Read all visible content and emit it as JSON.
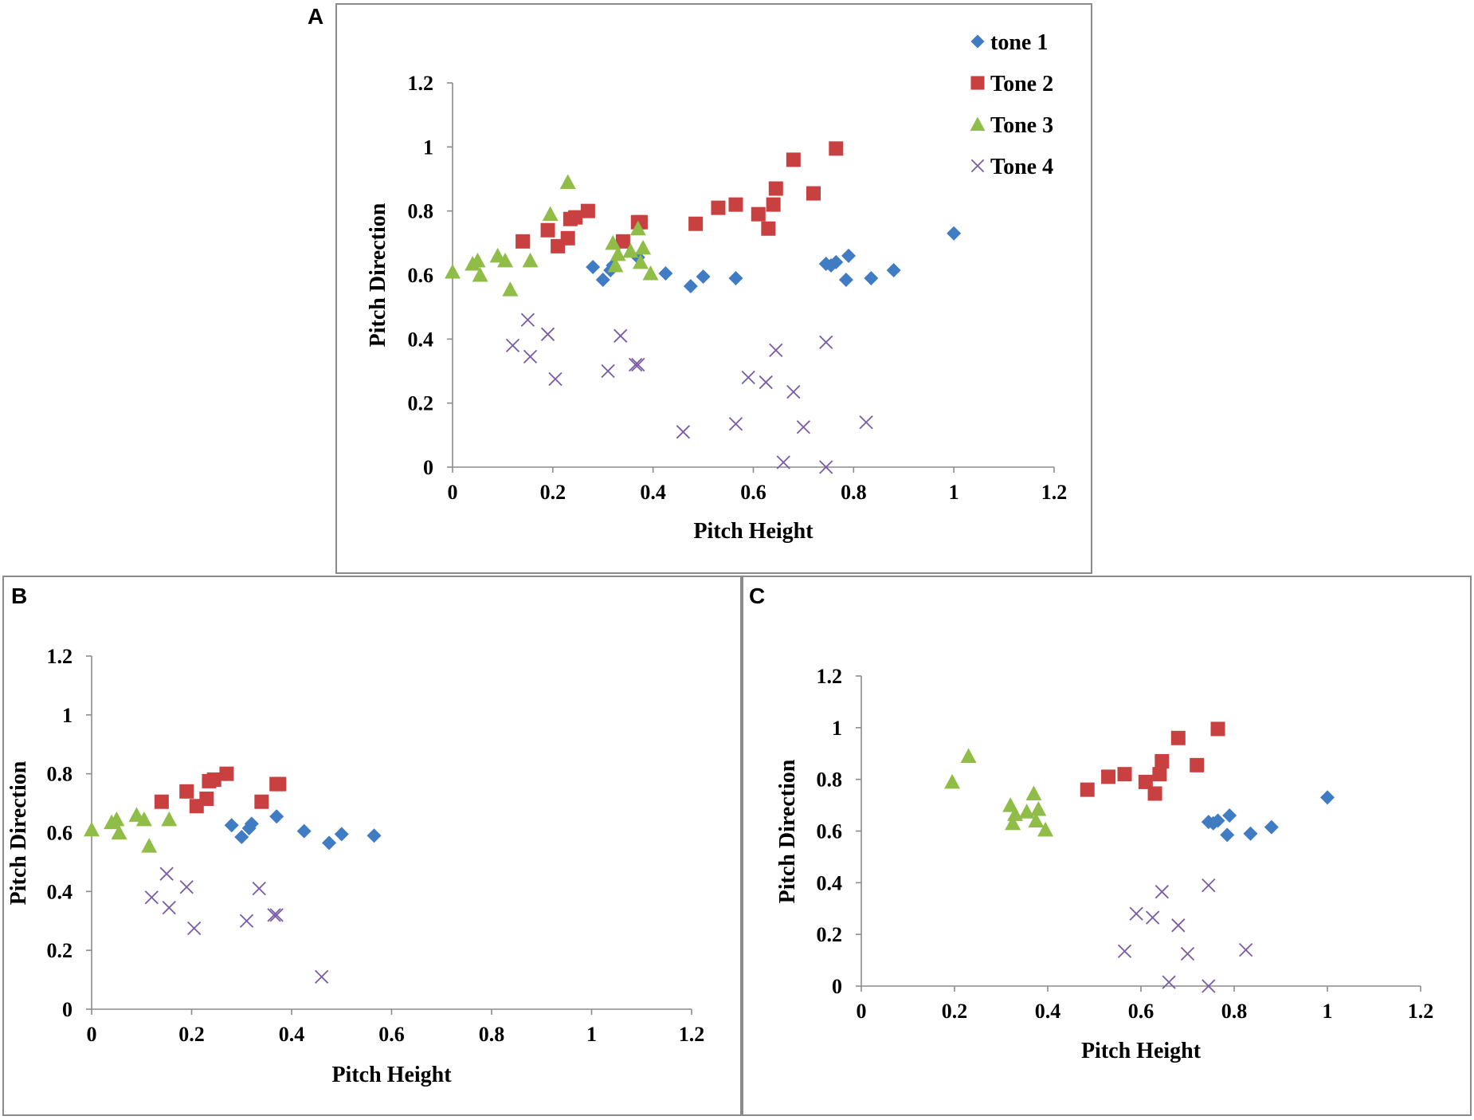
{
  "colors": {
    "tone1": "#3F7CC4",
    "tone2": "#C94040",
    "tone3": "#8FBD48",
    "tone4": "#7A5BA6",
    "axis": "#8c8c8c",
    "border": "#8a8a8a"
  },
  "legend": [
    {
      "label": "tone 1",
      "marker": "diamond",
      "color_key": "tone1"
    },
    {
      "label": "Tone 2",
      "marker": "square",
      "color_key": "tone2"
    },
    {
      "label": "Tone 3",
      "marker": "triangle",
      "color_key": "tone3"
    },
    {
      "label": "Tone 4",
      "marker": "cross",
      "color_key": "tone4"
    }
  ],
  "chart_data": [
    {
      "panel": "A",
      "type": "scatter",
      "xlabel": "Pitch Height",
      "ylabel": "Pitch Direction",
      "xlim": [
        0,
        1.2
      ],
      "ylim": [
        0,
        1.2
      ],
      "xticks": [
        "0",
        "0.2",
        "0.4",
        "0.6",
        "0.8",
        "1",
        "1.2"
      ],
      "yticks": [
        "0",
        "0.2",
        "0.4",
        "0.6",
        "0.8",
        "1",
        "1.2"
      ],
      "legend_position": "top-right",
      "series": [
        {
          "name": "tone 1",
          "marker": "diamond",
          "color_key": "tone1",
          "points": [
            [
              0.28,
              0.625
            ],
            [
              0.3,
              0.585
            ],
            [
              0.315,
              0.615
            ],
            [
              0.32,
              0.63
            ],
            [
              0.37,
              0.655
            ],
            [
              0.425,
              0.605
            ],
            [
              0.475,
              0.565
            ],
            [
              0.5,
              0.595
            ],
            [
              0.565,
              0.59
            ],
            [
              0.745,
              0.635
            ],
            [
              0.755,
              0.63
            ],
            [
              0.765,
              0.64
            ],
            [
              0.785,
              0.585
            ],
            [
              0.79,
              0.66
            ],
            [
              0.835,
              0.59
            ],
            [
              0.88,
              0.615
            ],
            [
              1.0,
              0.73
            ]
          ]
        },
        {
          "name": "Tone 2",
          "marker": "square",
          "color_key": "tone2",
          "points": [
            [
              0.14,
              0.705
            ],
            [
              0.19,
              0.74
            ],
            [
              0.21,
              0.69
            ],
            [
              0.23,
              0.715
            ],
            [
              0.235,
              0.775
            ],
            [
              0.245,
              0.78
            ],
            [
              0.27,
              0.8
            ],
            [
              0.34,
              0.705
            ],
            [
              0.37,
              0.765
            ],
            [
              0.375,
              0.765
            ],
            [
              0.485,
              0.76
            ],
            [
              0.53,
              0.81
            ],
            [
              0.565,
              0.82
            ],
            [
              0.61,
              0.79
            ],
            [
              0.63,
              0.745
            ],
            [
              0.64,
              0.82
            ],
            [
              0.645,
              0.87
            ],
            [
              0.68,
              0.96
            ],
            [
              0.72,
              0.855
            ],
            [
              0.765,
              0.995
            ]
          ]
        },
        {
          "name": "Tone 3",
          "marker": "triangle",
          "color_key": "tone3",
          "points": [
            [
              0.0,
              0.61
            ],
            [
              0.04,
              0.635
            ],
            [
              0.05,
              0.645
            ],
            [
              0.055,
              0.6
            ],
            [
              0.09,
              0.66
            ],
            [
              0.105,
              0.645
            ],
            [
              0.115,
              0.555
            ],
            [
              0.155,
              0.645
            ],
            [
              0.195,
              0.79
            ],
            [
              0.23,
              0.89
            ],
            [
              0.32,
              0.7
            ],
            [
              0.325,
              0.63
            ],
            [
              0.33,
              0.665
            ],
            [
              0.355,
              0.675
            ],
            [
              0.37,
              0.745
            ],
            [
              0.375,
              0.64
            ],
            [
              0.38,
              0.685
            ],
            [
              0.395,
              0.605
            ]
          ]
        },
        {
          "name": "Tone 4",
          "marker": "cross",
          "color_key": "tone4",
          "points": [
            [
              0.12,
              0.38
            ],
            [
              0.15,
              0.46
            ],
            [
              0.155,
              0.345
            ],
            [
              0.19,
              0.415
            ],
            [
              0.205,
              0.275
            ],
            [
              0.31,
              0.3
            ],
            [
              0.335,
              0.41
            ],
            [
              0.365,
              0.32
            ],
            [
              0.37,
              0.32
            ],
            [
              0.46,
              0.11
            ],
            [
              0.565,
              0.135
            ],
            [
              0.59,
              0.28
            ],
            [
              0.625,
              0.265
            ],
            [
              0.645,
              0.365
            ],
            [
              0.66,
              0.015
            ],
            [
              0.68,
              0.235
            ],
            [
              0.7,
              0.125
            ],
            [
              0.745,
              0.0
            ],
            [
              0.745,
              0.39
            ],
            [
              0.825,
              0.14
            ]
          ]
        }
      ]
    },
    {
      "panel": "B",
      "type": "scatter",
      "xlabel": "Pitch Height",
      "ylabel": "Pitch Direction",
      "xlim": [
        0,
        1.2
      ],
      "ylim": [
        0,
        1.2
      ],
      "xticks": [
        "0",
        "0.2",
        "0.4",
        "0.6",
        "0.8",
        "1",
        "1.2"
      ],
      "yticks": [
        "0",
        "0.2",
        "0.4",
        "0.6",
        "0.8",
        "1",
        "1.2"
      ],
      "series": [
        {
          "name": "tone 1",
          "marker": "diamond",
          "color_key": "tone1",
          "points": [
            [
              0.28,
              0.625
            ],
            [
              0.3,
              0.585
            ],
            [
              0.315,
              0.615
            ],
            [
              0.32,
              0.63
            ],
            [
              0.37,
              0.655
            ],
            [
              0.425,
              0.605
            ],
            [
              0.475,
              0.565
            ],
            [
              0.5,
              0.595
            ],
            [
              0.565,
              0.59
            ]
          ]
        },
        {
          "name": "Tone 2",
          "marker": "square",
          "color_key": "tone2",
          "points": [
            [
              0.14,
              0.705
            ],
            [
              0.19,
              0.74
            ],
            [
              0.21,
              0.69
            ],
            [
              0.23,
              0.715
            ],
            [
              0.235,
              0.775
            ],
            [
              0.245,
              0.78
            ],
            [
              0.27,
              0.8
            ],
            [
              0.34,
              0.705
            ],
            [
              0.37,
              0.765
            ],
            [
              0.375,
              0.765
            ]
          ]
        },
        {
          "name": "Tone 3",
          "marker": "triangle",
          "color_key": "tone3",
          "points": [
            [
              0.0,
              0.61
            ],
            [
              0.04,
              0.635
            ],
            [
              0.05,
              0.645
            ],
            [
              0.055,
              0.6
            ],
            [
              0.09,
              0.66
            ],
            [
              0.105,
              0.645
            ],
            [
              0.115,
              0.555
            ],
            [
              0.155,
              0.645
            ]
          ]
        },
        {
          "name": "Tone 4",
          "marker": "cross",
          "color_key": "tone4",
          "points": [
            [
              0.12,
              0.38
            ],
            [
              0.15,
              0.46
            ],
            [
              0.155,
              0.345
            ],
            [
              0.19,
              0.415
            ],
            [
              0.205,
              0.275
            ],
            [
              0.31,
              0.3
            ],
            [
              0.335,
              0.41
            ],
            [
              0.365,
              0.32
            ],
            [
              0.37,
              0.32
            ],
            [
              0.46,
              0.11
            ]
          ]
        }
      ]
    },
    {
      "panel": "C",
      "type": "scatter",
      "xlabel": "Pitch Height",
      "ylabel": "Pitch Direction",
      "xlim": [
        0,
        1.2
      ],
      "ylim": [
        0,
        1.2
      ],
      "xticks": [
        "0",
        "0.2",
        "0.4",
        "0.6",
        "0.8",
        "1",
        "1.2"
      ],
      "yticks": [
        "0",
        "0.2",
        "0.4",
        "0.6",
        "0.8",
        "1",
        "1.2"
      ],
      "series": [
        {
          "name": "tone 1",
          "marker": "diamond",
          "color_key": "tone1",
          "points": [
            [
              0.745,
              0.635
            ],
            [
              0.755,
              0.63
            ],
            [
              0.765,
              0.64
            ],
            [
              0.785,
              0.585
            ],
            [
              0.79,
              0.66
            ],
            [
              0.835,
              0.59
            ],
            [
              0.88,
              0.615
            ],
            [
              1.0,
              0.73
            ]
          ]
        },
        {
          "name": "Tone 2",
          "marker": "square",
          "color_key": "tone2",
          "points": [
            [
              0.485,
              0.76
            ],
            [
              0.53,
              0.81
            ],
            [
              0.565,
              0.82
            ],
            [
              0.61,
              0.79
            ],
            [
              0.63,
              0.745
            ],
            [
              0.64,
              0.82
            ],
            [
              0.645,
              0.87
            ],
            [
              0.68,
              0.96
            ],
            [
              0.72,
              0.855
            ],
            [
              0.765,
              0.995
            ]
          ]
        },
        {
          "name": "Tone 3",
          "marker": "triangle",
          "color_key": "tone3",
          "points": [
            [
              0.195,
              0.79
            ],
            [
              0.23,
              0.89
            ],
            [
              0.32,
              0.7
            ],
            [
              0.325,
              0.63
            ],
            [
              0.33,
              0.665
            ],
            [
              0.355,
              0.675
            ],
            [
              0.37,
              0.745
            ],
            [
              0.375,
              0.64
            ],
            [
              0.38,
              0.685
            ],
            [
              0.395,
              0.605
            ]
          ]
        },
        {
          "name": "Tone 4",
          "marker": "cross",
          "color_key": "tone4",
          "points": [
            [
              0.565,
              0.135
            ],
            [
              0.59,
              0.28
            ],
            [
              0.625,
              0.265
            ],
            [
              0.645,
              0.365
            ],
            [
              0.66,
              0.015
            ],
            [
              0.68,
              0.235
            ],
            [
              0.7,
              0.125
            ],
            [
              0.745,
              0.0
            ],
            [
              0.745,
              0.39
            ],
            [
              0.825,
              0.14
            ]
          ]
        }
      ]
    }
  ]
}
